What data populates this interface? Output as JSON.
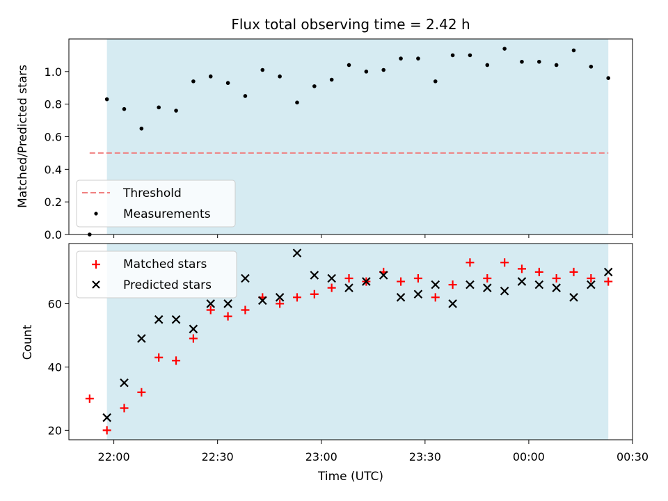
{
  "chart_data": [
    {
      "type": "scatter",
      "title": "Flux total observing time = 2.42 h",
      "ylabel": "Matched/Predicted stars",
      "ylim": [
        0,
        1.2
      ],
      "yticks": [
        "0.0",
        "0.2",
        "0.4",
        "0.6",
        "0.8",
        "1.0"
      ],
      "grid": false,
      "legend_position": "lower-left",
      "observing_window": {
        "start_min": 1318,
        "end_min": 1463
      },
      "threshold": {
        "name": "Threshold",
        "value": 0.5,
        "x_start_min": 1313,
        "x_end_min": 1463,
        "color": "#f08080",
        "style": "dashed"
      },
      "series": [
        {
          "name": "Measurements",
          "color": "#000000",
          "marker": "dot",
          "x_min": [
            1313,
            1318,
            1323,
            1328,
            1333,
            1338,
            1343,
            1348,
            1353,
            1358,
            1363,
            1368,
            1373,
            1378,
            1383,
            1388,
            1393,
            1398,
            1403,
            1408,
            1413,
            1418,
            1423,
            1428,
            1433,
            1438,
            1443,
            1448,
            1453,
            1458,
            1463
          ],
          "values": [
            0.0,
            0.83,
            0.77,
            0.65,
            0.78,
            0.76,
            0.94,
            0.97,
            0.93,
            0.85,
            1.01,
            0.97,
            0.81,
            0.91,
            0.95,
            1.04,
            1.0,
            1.01,
            1.08,
            1.08,
            0.94,
            1.1,
            1.1,
            1.04,
            1.14,
            1.06,
            1.06,
            1.04,
            1.13,
            1.03,
            0.96
          ]
        }
      ]
    },
    {
      "type": "scatter",
      "xlabel": "Time (UTC)",
      "ylabel": "Count",
      "ylim": [
        17,
        79
      ],
      "yticks": [
        "20",
        "40",
        "60"
      ],
      "xlim_min": [
        1307,
        1470
      ],
      "xticks": [
        "22:00",
        "22:30",
        "23:00",
        "23:30",
        "00:00",
        "00:30"
      ],
      "xtick_min": [
        1320,
        1350,
        1380,
        1410,
        1440,
        1470
      ],
      "grid": false,
      "legend_position": "upper-left",
      "observing_window": {
        "start_min": 1318,
        "end_min": 1463
      },
      "series": [
        {
          "name": "Matched stars",
          "color": "#ff0000",
          "marker": "plus",
          "x_min": [
            1313,
            1318,
            1323,
            1328,
            1333,
            1338,
            1343,
            1348,
            1353,
            1358,
            1363,
            1368,
            1373,
            1378,
            1383,
            1388,
            1393,
            1398,
            1403,
            1408,
            1413,
            1418,
            1423,
            1428,
            1433,
            1438,
            1443,
            1448,
            1453,
            1458,
            1463
          ],
          "values": [
            30,
            20,
            27,
            32,
            43,
            42,
            49,
            58,
            56,
            58,
            62,
            60,
            62,
            63,
            65,
            68,
            67,
            70,
            67,
            68,
            62,
            66,
            73,
            68,
            73,
            71,
            70,
            68,
            70,
            68,
            67
          ]
        },
        {
          "name": "Predicted stars",
          "color": "#000000",
          "marker": "x",
          "x_min": [
            1318,
            1323,
            1328,
            1333,
            1338,
            1343,
            1348,
            1353,
            1358,
            1363,
            1368,
            1373,
            1378,
            1383,
            1388,
            1393,
            1398,
            1403,
            1408,
            1413,
            1418,
            1423,
            1428,
            1433,
            1438,
            1443,
            1448,
            1453,
            1458,
            1463
          ],
          "values": [
            24,
            35,
            49,
            55,
            55,
            52,
            60,
            60,
            68,
            61,
            62,
            76,
            69,
            68,
            65,
            67,
            69,
            62,
            63,
            66,
            60,
            66,
            65,
            64,
            67,
            66,
            65,
            62,
            66,
            70
          ]
        }
      ]
    }
  ]
}
